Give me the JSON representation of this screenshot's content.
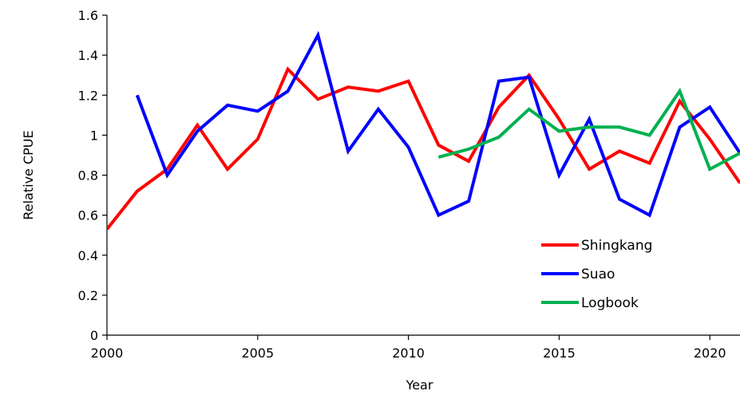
{
  "chart_data": {
    "type": "line",
    "title": "",
    "xlabel": "Year",
    "ylabel": "Relative CPUE",
    "xlim": [
      2000,
      2021
    ],
    "ylim": [
      0,
      1.6
    ],
    "x_ticks": [
      2000,
      2005,
      2010,
      2015,
      2020
    ],
    "y_ticks": [
      0,
      0.2,
      0.4,
      0.6,
      0.8,
      1,
      1.2,
      1.4,
      1.6
    ],
    "y_tick_labels": [
      "0",
      "0.2",
      "0.4",
      "0.6",
      "0.8",
      "1",
      "1.2",
      "1.4",
      "1.6"
    ],
    "grid": false,
    "legend_position": "bottom-right",
    "series": [
      {
        "name": "Shingkang",
        "color": "#ff0000",
        "x": [
          2000,
          2001,
          2002,
          2003,
          2004,
          2005,
          2006,
          2007,
          2008,
          2009,
          2010,
          2011,
          2012,
          2013,
          2014,
          2015,
          2016,
          2017,
          2018,
          2019,
          2020,
          2021
        ],
        "y": [
          0.53,
          0.72,
          0.83,
          1.05,
          0.83,
          0.98,
          1.33,
          1.18,
          1.24,
          1.22,
          1.27,
          0.95,
          0.87,
          1.14,
          1.3,
          1.08,
          0.83,
          0.92,
          0.86,
          1.17,
          0.98,
          0.76
        ]
      },
      {
        "name": "Suao",
        "color": "#0000ff",
        "x": [
          2001,
          2002,
          2003,
          2004,
          2005,
          2006,
          2007,
          2008,
          2009,
          2010,
          2011,
          2012,
          2013,
          2014,
          2015,
          2016,
          2017,
          2018,
          2019,
          2020,
          2021
        ],
        "y": [
          1.2,
          0.8,
          1.02,
          1.15,
          1.12,
          1.22,
          1.5,
          0.92,
          1.13,
          0.94,
          0.6,
          0.67,
          1.27,
          1.29,
          0.8,
          1.08,
          0.68,
          0.6,
          1.04,
          1.14,
          0.91
        ]
      },
      {
        "name": "Logbook",
        "color": "#00b050",
        "x": [
          2011,
          2012,
          2013,
          2014,
          2015,
          2016,
          2017,
          2018,
          2019,
          2020,
          2021
        ],
        "y": [
          0.89,
          0.93,
          0.99,
          1.13,
          1.02,
          1.04,
          1.04,
          1.0,
          1.22,
          0.83,
          0.91
        ]
      }
    ]
  }
}
